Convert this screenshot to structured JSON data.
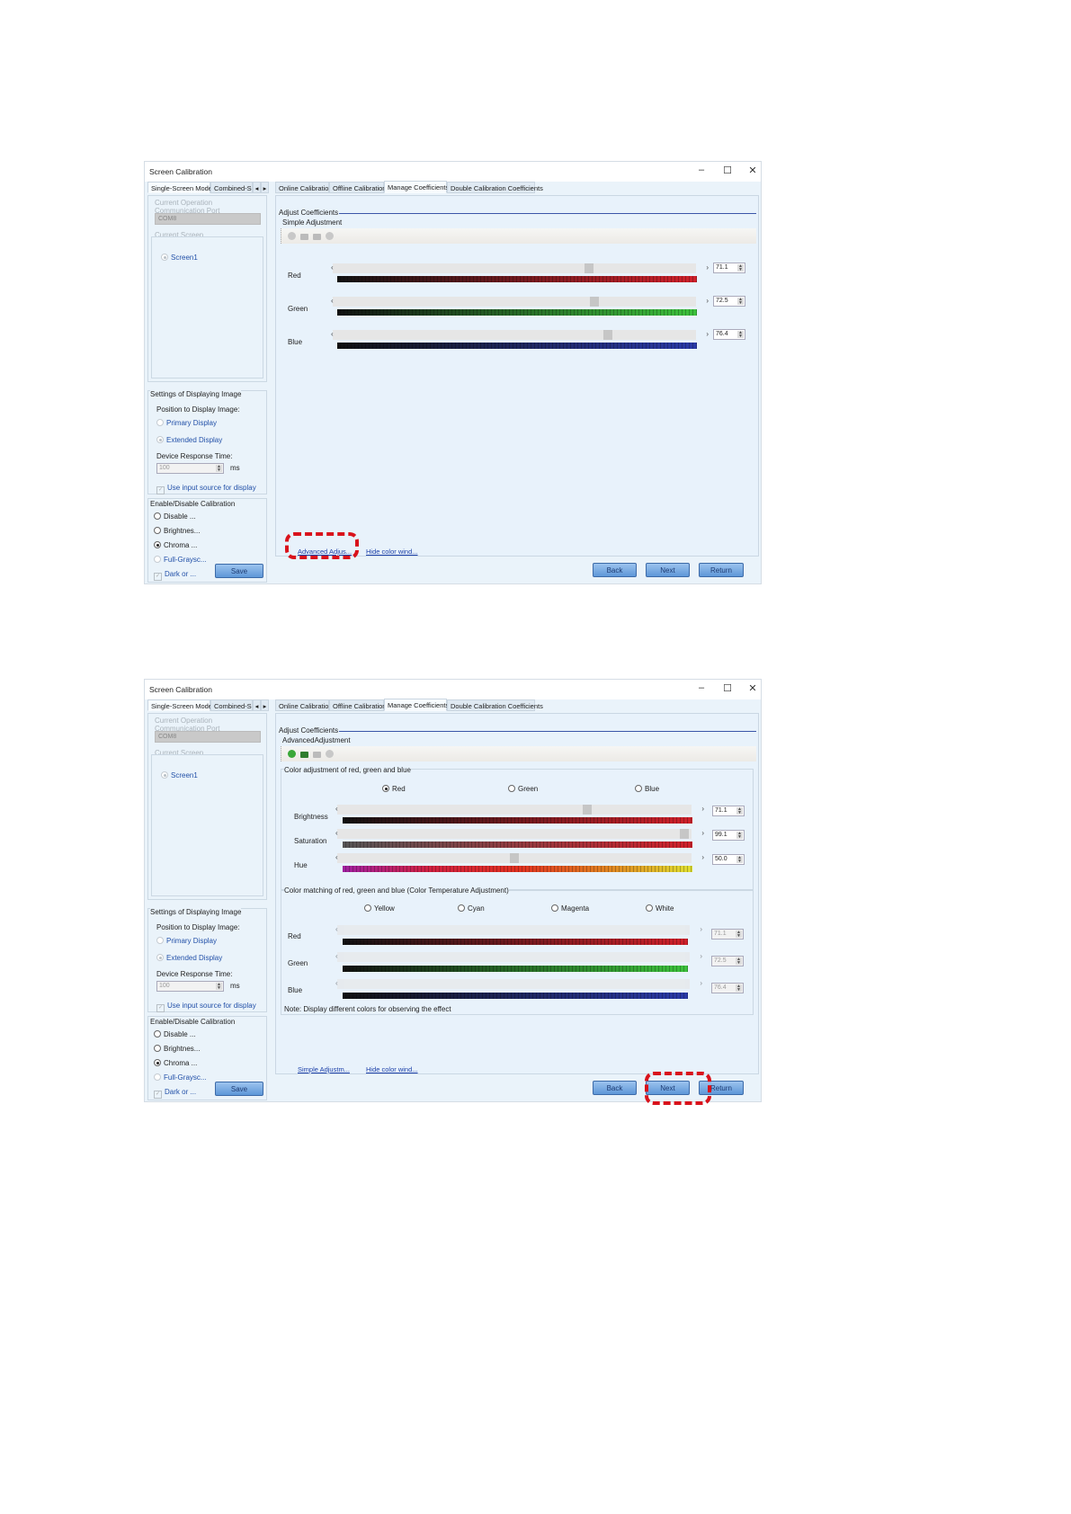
{
  "windows": [
    {
      "title": "Screen Calibration",
      "left_tabs": [
        "Single-Screen Mode",
        "Combined-Sc"
      ],
      "main_tabs": [
        "Online Calibration",
        "Offline Calibration",
        "Manage Coefficients",
        "Double Calibration Coefficients"
      ],
      "active_main_tab": "Manage Coefficients",
      "current_operation_label": "Current Operation",
      "comm_port_label": "Communication Port",
      "comm_port_value": "COM8",
      "current_screen_label": "Current Screen",
      "screen_item": "Screen1",
      "settings_title": "Settings of Displaying Image",
      "position_label": "Position to Display Image:",
      "primary_display": "Primary Display",
      "extended_display": "Extended Display",
      "response_label": "Device Response Time:",
      "response_value": "100",
      "response_unit": "ms",
      "use_input_source": "Use input source for display",
      "enable_title": "Enable/Disable Calibration",
      "cal_options": [
        "Disable ...",
        "Brightnes...",
        "Chroma ...",
        "Full-Graysc...",
        "Dark or ..."
      ],
      "cal_selected": "Chroma ...",
      "save_label": "Save",
      "adjust_title": "Adjust Coefficients",
      "sub_title": "Simple Adjustment",
      "simple_rows": [
        {
          "label": "Red",
          "value": "71.1",
          "color": "#d0202a"
        },
        {
          "label": "Green",
          "value": "72.5",
          "color": "#3cc23c"
        },
        {
          "label": "Blue",
          "value": "76.4",
          "color": "#2a3aa8"
        }
      ],
      "link_left": "Advanced Adjus...",
      "link_right": "Hide color wind...",
      "back_label": "Back",
      "next_label": "Next",
      "return_label": "Return",
      "highlight": "Advanced Adjus..."
    },
    {
      "title": "Screen Calibration",
      "left_tabs": [
        "Single-Screen Mode",
        "Combined-Sc"
      ],
      "main_tabs": [
        "Online Calibration",
        "Offline Calibration",
        "Manage Coefficients",
        "Double Calibration Coefficients"
      ],
      "active_main_tab": "Manage Coefficients",
      "current_operation_label": "Current Operation",
      "comm_port_label": "Communication Port",
      "comm_port_value": "COM8",
      "current_screen_label": "Current Screen",
      "screen_item": "Screen1",
      "settings_title": "Settings of Displaying Image",
      "position_label": "Position to Display Image:",
      "primary_display": "Primary Display",
      "extended_display": "Extended Display",
      "response_label": "Device Response Time:",
      "response_value": "100",
      "response_unit": "ms",
      "use_input_source": "Use input source for display",
      "enable_title": "Enable/Disable Calibration",
      "cal_options": [
        "Disable ...",
        "Brightnes...",
        "Chroma ...",
        "Full-Graysc...",
        "Dark or ..."
      ],
      "cal_selected": "Chroma ...",
      "save_label": "Save",
      "adjust_title": "Adjust Coefficients",
      "sub_title": "AdvancedAdjustment",
      "color_adjust_title": "Color adjustment of red, green and blue",
      "color_choices": [
        "Red",
        "Green",
        "Blue"
      ],
      "color_selected": "Red",
      "adv_rows": [
        {
          "label": "Brightness",
          "value": "71.1"
        },
        {
          "label": "Saturation",
          "value": "99.1"
        },
        {
          "label": "Hue",
          "value": "50.0"
        }
      ],
      "matching_title": "Color matching of red, green and blue (Color Temperature Adjustment)",
      "matching_choices": [
        "Yellow",
        "Cyan",
        "Magenta",
        "White"
      ],
      "matching_rows": [
        {
          "label": "Red",
          "value": "71.1",
          "color": "#d0202a"
        },
        {
          "label": "Green",
          "value": "72.5",
          "color": "#3cc23c"
        },
        {
          "label": "Blue",
          "value": "76.4",
          "color": "#2a3aa8"
        }
      ],
      "note": "Note: Display different colors for observing the effect",
      "link_left": "Simple Adjustm...",
      "link_right": "Hide color wind...",
      "back_label": "Back",
      "next_label": "Next",
      "return_label": "Return",
      "highlight": "Next"
    }
  ]
}
